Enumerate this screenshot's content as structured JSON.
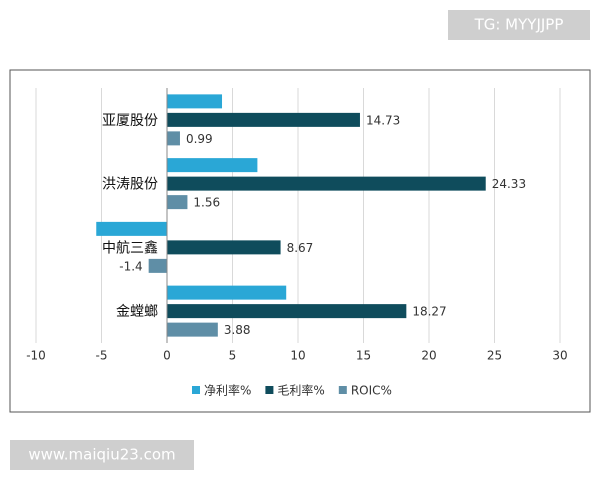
{
  "chart_data": {
    "type": "hbar",
    "categories": [
      "亚厦股份",
      "洪涛股份",
      "中航三鑫",
      "金螳螂"
    ],
    "series": [
      {
        "name": "净利率%",
        "color": "#2aa7d6",
        "values": [
          4.2,
          6.9,
          -5.4,
          9.1
        ]
      },
      {
        "name": "毛利率%",
        "color": "#0f4c5c",
        "values": [
          14.73,
          24.33,
          8.67,
          18.27
        ],
        "labels": true
      },
      {
        "name": "ROIC%",
        "color": "#5f8ea6",
        "values": [
          0.99,
          1.56,
          -1.4,
          3.88
        ],
        "labels": true
      }
    ],
    "xlim": [
      -10,
      30
    ],
    "xticks": [
      -10,
      -5,
      0,
      5,
      10,
      15,
      20,
      25,
      30
    ],
    "grid": true,
    "legend": "bottom"
  },
  "watermarks": {
    "top": "TG: MYYJJPP",
    "bottom": "www.maiqiu23.com"
  }
}
